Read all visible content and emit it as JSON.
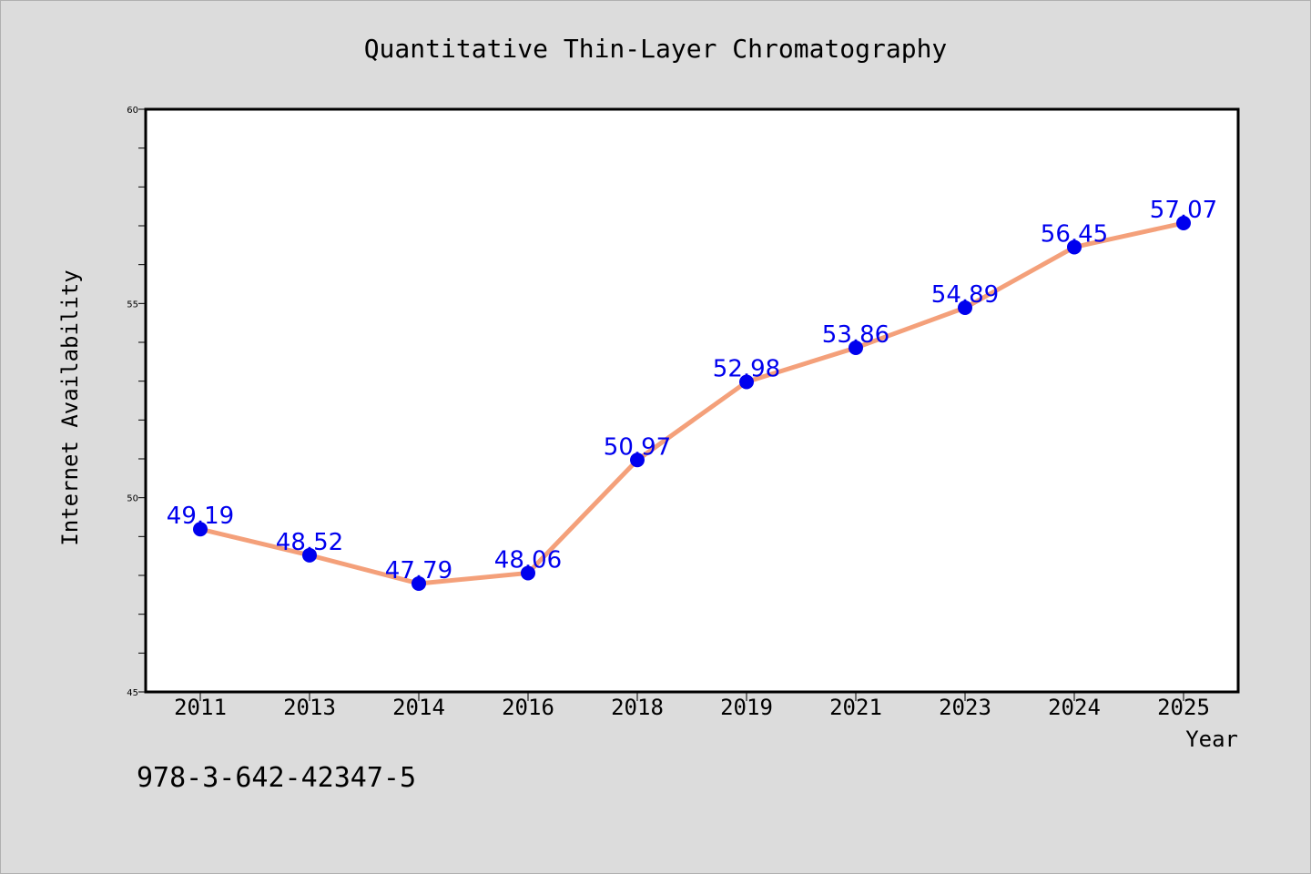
{
  "chart_data": {
    "type": "line",
    "title": "Quantitative Thin-Layer Chromatography",
    "xlabel": "Year",
    "ylabel": "Internet Availability",
    "categories": [
      "2011",
      "2013",
      "2014",
      "2016",
      "2018",
      "2019",
      "2021",
      "2023",
      "2024",
      "2025"
    ],
    "series": [
      {
        "values": [
          49.19,
          48.52,
          47.79,
          48.06,
          50.97,
          52.98,
          53.86,
          54.89,
          56.45,
          57.07
        ],
        "data_labels": [
          "49.19",
          "48.52",
          "47.79",
          "48.06",
          "50.97",
          "52.98",
          "53.86",
          "54.89",
          "56.45",
          "57.07"
        ]
      }
    ],
    "ylim": [
      45,
      60
    ],
    "yticks": [
      "45",
      "50",
      "55",
      "60"
    ],
    "grid": false,
    "line_color": "#f4a07a",
    "marker_color": "#0000ee",
    "label_color": "#0000ee"
  },
  "footnote": "978-3-642-42347-5"
}
